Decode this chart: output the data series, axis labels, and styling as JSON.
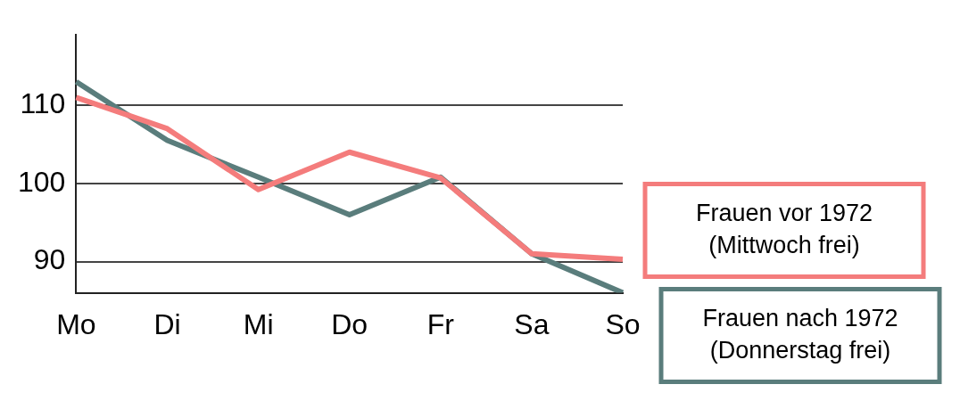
{
  "chart_data": {
    "type": "line",
    "categories": [
      "Mo",
      "Di",
      "Mi",
      "Do",
      "Fr",
      "Sa",
      "So"
    ],
    "series": [
      {
        "name": "Frauen vor 1972\n(Mittwoch frei)",
        "color": "#f47c7c",
        "values": [
          111,
          107,
          99.2,
          104,
          100.7,
          91,
          90.3
        ]
      },
      {
        "name": "Frauen nach 1972\n(Donnerstag frei)",
        "color": "#5a7d7c",
        "values": [
          113,
          105.5,
          100.8,
          96,
          100.8,
          91,
          86
        ]
      }
    ],
    "ylim": [
      86,
      119
    ],
    "yticks": [
      90,
      100,
      110
    ],
    "grid": "y",
    "legend": "right",
    "marker": "none",
    "line_style": "solid"
  }
}
